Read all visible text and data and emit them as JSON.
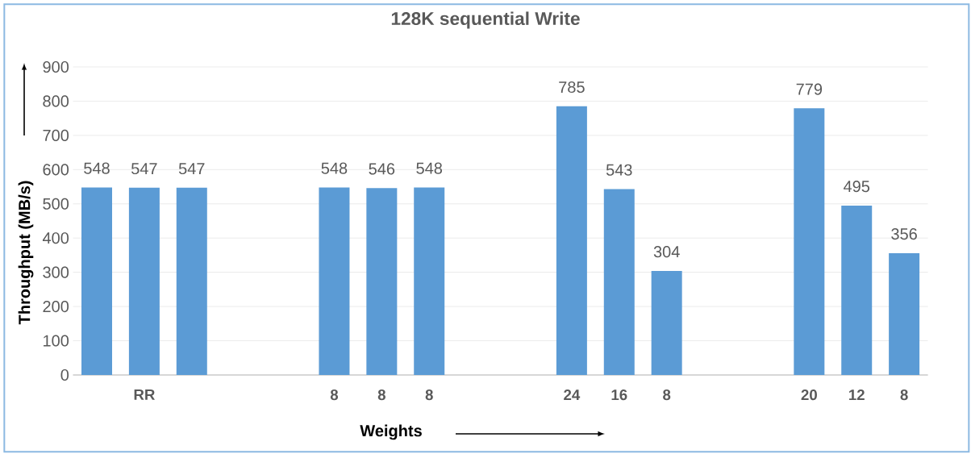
{
  "chart_data": {
    "type": "bar",
    "title": "128K sequential Write",
    "xlabel": "Weights",
    "ylabel": "Throughput (MB/s)",
    "categories": [
      null,
      "RR",
      null,
      null,
      null,
      "8",
      "8",
      "8",
      null,
      null,
      "24",
      "16",
      "8",
      null,
      null,
      "20",
      "12",
      "8"
    ],
    "values": [
      548,
      547,
      547,
      null,
      null,
      548,
      546,
      548,
      null,
      null,
      785,
      543,
      304,
      null,
      null,
      779,
      495,
      356
    ],
    "color": "#5b9bd5",
    "ylim": [
      0,
      900
    ],
    "yticks": [
      0,
      100,
      200,
      300,
      400,
      500,
      600,
      700,
      800,
      900
    ],
    "grid": "y",
    "data_labels": true
  }
}
